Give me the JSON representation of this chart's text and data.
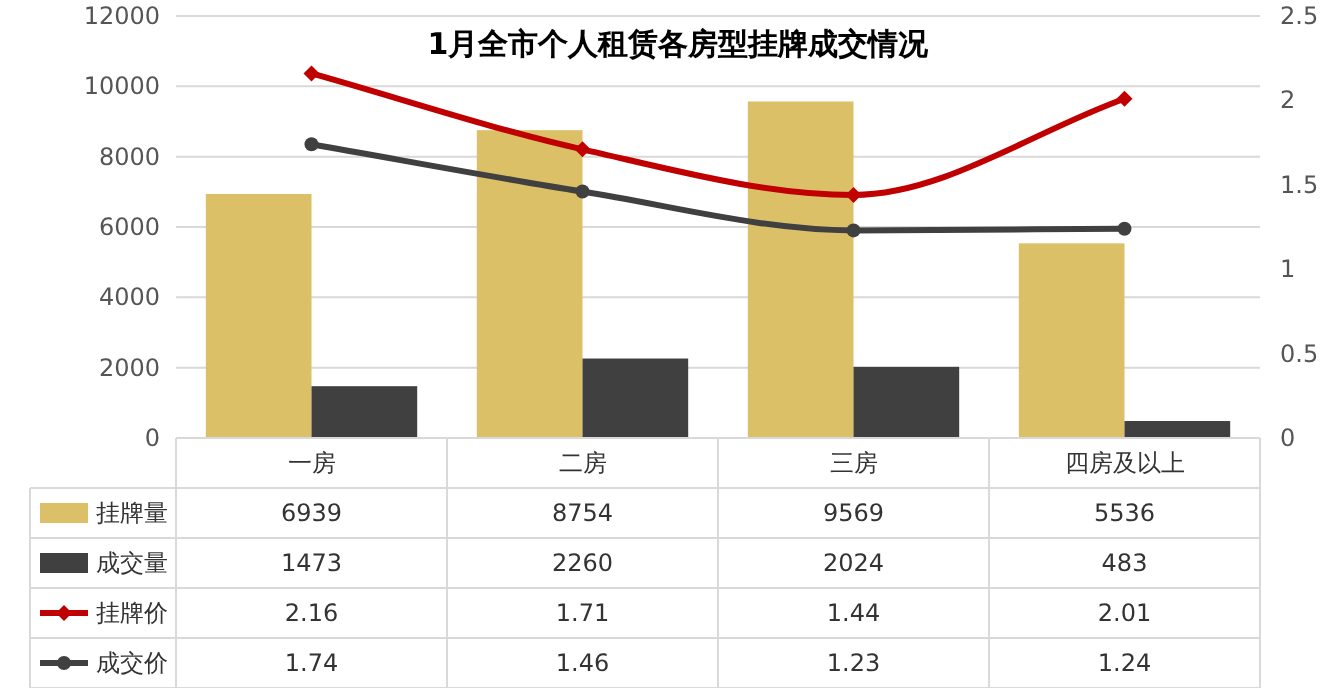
{
  "chart_data": {
    "type": "bar",
    "title": "1月全市个人租赁各房型挂牌成交情况",
    "categories": [
      "一房",
      "二房",
      "三房",
      "四房及以上"
    ],
    "series": [
      {
        "name": "挂牌量",
        "color": "#dcc068",
        "values": [
          6939,
          8754,
          9569,
          5536
        ]
      },
      {
        "name": "成交量",
        "color": "#404040",
        "values": [
          1473,
          2260,
          2024,
          483
        ]
      },
      {
        "name": "挂牌价",
        "type": "line",
        "axis": "y2",
        "color": "#c00000",
        "marker": "diamond",
        "values": [
          2.16,
          1.71,
          1.44,
          2.01
        ]
      },
      {
        "name": "成交价",
        "type": "line",
        "axis": "y2",
        "color": "#404040",
        "marker": "circle",
        "values": [
          1.74,
          1.46,
          1.23,
          1.24
        ]
      }
    ],
    "ylim": [
      0,
      12000
    ],
    "yticks": [
      0,
      2000,
      4000,
      6000,
      8000,
      10000,
      12000
    ],
    "y2lim": [
      0,
      2.5
    ],
    "y2ticks": [
      0,
      0.5,
      1,
      1.5,
      2,
      2.5
    ],
    "grid": "y",
    "data_labels": true,
    "legend": "bottom left"
  }
}
